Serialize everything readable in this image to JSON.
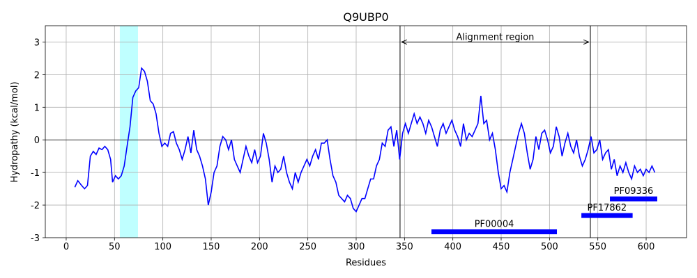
{
  "chart_data": {
    "type": "line",
    "title": "Q9UBP0",
    "xlabel": "Residues",
    "ylabel": "Hydropathy (kcal/mol)",
    "color": "#0000ff",
    "xlim": [
      -21.6,
      641.8
    ],
    "ylim": [
      -3,
      3.5
    ],
    "xticks": [
      0,
      50,
      100,
      150,
      200,
      250,
      300,
      350,
      400,
      450,
      500,
      550,
      600
    ],
    "yticks": [
      -3,
      -2,
      -1,
      0,
      1,
      2,
      3
    ],
    "grid": true,
    "hline": 0,
    "span": {
      "start": 55.5,
      "end": 74.3,
      "color": "#00ffff"
    },
    "alignment": {
      "label": "Alignment region",
      "start": 345.4,
      "end": 542.3,
      "y": 3
    },
    "features": [
      {
        "name": "PF00004",
        "start": 377.9,
        "end": 507.7,
        "y": -2.82,
        "color": "#0000ff"
      },
      {
        "name": "PF17862",
        "start": 533,
        "end": 586,
        "y": -2.32,
        "color": "#0000ff"
      },
      {
        "name": "PF09336",
        "start": 562.5,
        "end": 611.5,
        "y": -1.81,
        "color": "#0000ff"
      }
    ],
    "x": [
      9,
      12,
      16,
      19,
      22,
      25,
      28,
      31,
      34,
      37,
      40,
      43,
      46,
      48,
      51,
      54,
      57,
      60,
      63,
      66,
      69,
      72,
      75,
      78,
      81,
      84,
      87,
      90,
      93,
      96,
      99,
      102,
      105,
      108,
      111,
      114,
      117,
      120,
      123,
      126,
      129,
      132,
      135,
      138,
      141,
      144,
      147,
      150,
      153,
      156,
      159,
      162,
      165,
      168,
      171,
      174,
      177,
      180,
      183,
      186,
      189,
      192,
      195,
      198,
      201,
      204,
      207,
      210,
      213,
      216,
      219,
      222,
      225,
      228,
      231,
      234,
      237,
      240,
      243,
      246,
      249,
      252,
      255,
      258,
      261,
      264,
      267,
      270,
      273,
      276,
      279,
      282,
      285,
      288,
      291,
      294,
      297,
      300,
      303,
      306,
      309,
      312,
      315,
      318,
      321,
      324,
      327,
      330,
      333,
      336,
      339,
      342,
      345,
      348,
      351,
      354,
      357,
      360,
      363,
      366,
      369,
      372,
      375,
      378,
      381,
      384,
      387,
      390,
      393,
      396,
      399,
      402,
      405,
      408,
      411,
      414,
      417,
      420,
      423,
      426,
      429,
      432,
      435,
      438,
      441,
      444,
      447,
      450,
      453,
      456,
      459,
      462,
      465,
      468,
      471,
      474,
      477,
      480,
      483,
      486,
      489,
      492,
      495,
      498,
      501,
      504,
      507,
      510,
      513,
      516,
      519,
      522,
      525,
      528,
      531,
      534,
      537,
      540,
      543,
      546,
      549,
      552,
      555,
      558,
      561,
      564,
      567,
      570,
      573,
      576,
      579,
      582,
      585,
      588,
      591,
      594,
      597,
      600,
      603,
      606,
      609
    ],
    "values": [
      -1.45,
      -1.25,
      -1.4,
      -1.5,
      -1.4,
      -0.5,
      -0.35,
      -0.45,
      -0.25,
      -0.3,
      -0.2,
      -0.3,
      -0.6,
      -1.3,
      -1.1,
      -1.2,
      -1.1,
      -0.8,
      -0.2,
      0.4,
      1.3,
      1.5,
      1.6,
      2.2,
      2.1,
      1.8,
      1.2,
      1.1,
      0.8,
      0.2,
      -0.2,
      -0.1,
      -0.2,
      0.2,
      0.25,
      -0.1,
      -0.3,
      -0.6,
      -0.3,
      0.1,
      -0.4,
      0.3,
      -0.3,
      -0.5,
      -0.8,
      -1.2,
      -2.0,
      -1.6,
      -1.0,
      -0.8,
      -0.2,
      0.1,
      0,
      -0.3,
      0.0,
      -0.6,
      -0.8,
      -1.0,
      -0.6,
      -0.2,
      -0.5,
      -0.7,
      -0.3,
      -0.7,
      -0.5,
      0.2,
      -0.1,
      -0.6,
      -1.3,
      -0.8,
      -1.0,
      -0.9,
      -0.5,
      -1.0,
      -1.3,
      -1.5,
      -1.0,
      -1.3,
      -1.0,
      -0.8,
      -0.6,
      -0.8,
      -0.5,
      -0.3,
      -0.6,
      -0.1,
      -0.1,
      0.0,
      -0.6,
      -1.1,
      -1.3,
      -1.7,
      -1.8,
      -1.9,
      -1.7,
      -1.8,
      -2.1,
      -2.2,
      -2.0,
      -1.8,
      -1.8,
      -1.5,
      -1.2,
      -1.2,
      -0.8,
      -0.6,
      -0.1,
      -0.2,
      0.3,
      0.4,
      -0.2,
      0.3,
      -0.6,
      0.2,
      0.5,
      0.2,
      0.5,
      0.8,
      0.5,
      0.7,
      0.5,
      0.2,
      0.6,
      0.4,
      0.1,
      -0.2,
      0.3,
      0.5,
      0.2,
      0.4,
      0.6,
      0.3,
      0.1,
      -0.2,
      0.5,
      0.0,
      0.2,
      0.1,
      0.3,
      0.5,
      1.35,
      0.5,
      0.6,
      0.0,
      0.2,
      -0.3,
      -1.0,
      -1.5,
      -1.4,
      -1.6,
      -1.0,
      -0.6,
      -0.2,
      0.2,
      0.5,
      0.2,
      -0.4,
      -0.9,
      -0.6,
      0.1,
      -0.3,
      0.2,
      0.3,
      0.0,
      -0.4,
      -0.2,
      0.4,
      0.1,
      -0.5,
      -0.1,
      0.2,
      -0.2,
      -0.4,
      0.0,
      -0.5,
      -0.8,
      -0.6,
      -0.3,
      0.1,
      -0.4,
      -0.3,
      0.0,
      -0.6,
      -0.4,
      -0.3,
      -0.9,
      -0.6,
      -1.1,
      -0.8,
      -1.0,
      -0.7,
      -1.0,
      -1.2,
      -0.8,
      -1.0,
      -0.9,
      -1.1,
      -0.9,
      -1.0,
      -0.8,
      -1.0
    ]
  }
}
